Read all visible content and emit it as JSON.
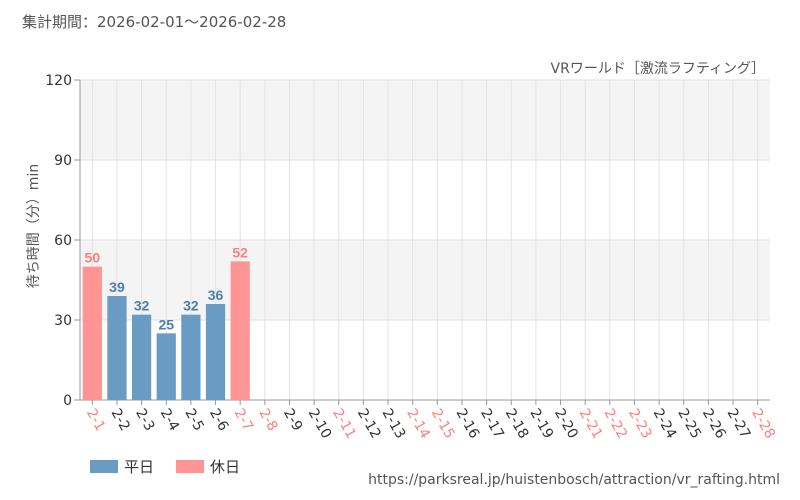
{
  "header": {
    "period": "集計期間：2026-02-01～2026-02-28"
  },
  "colors": {
    "weekday": "#6a9bc3",
    "holiday": "#ff9494",
    "weekday_label": "#4d7eaa",
    "holiday_label": "#ff7f7f",
    "grid_band": "#f4f4f4"
  },
  "chart_data": {
    "type": "bar",
    "title": "",
    "subtitle": "VRワールド［激流ラフティング］",
    "xlabel": "",
    "ylabel": "待ち時間（分）min",
    "ylim": [
      0,
      120
    ],
    "yticks": [
      "0",
      "30",
      "60",
      "90",
      "120"
    ],
    "grid": true,
    "legend_position": "bottom-left",
    "categories": [
      "2-1",
      "2-2",
      "2-3",
      "2-4",
      "2-5",
      "2-6",
      "2-7",
      "2-8",
      "2-9",
      "2-10",
      "2-11",
      "2-12",
      "2-13",
      "2-14",
      "2-15",
      "2-16",
      "2-17",
      "2-18",
      "2-19",
      "2-20",
      "2-21",
      "2-22",
      "2-23",
      "2-24",
      "2-25",
      "2-26",
      "2-27",
      "2-28"
    ],
    "values": [
      50,
      39,
      32,
      25,
      32,
      36,
      52,
      null,
      null,
      null,
      null,
      null,
      null,
      null,
      null,
      null,
      null,
      null,
      null,
      null,
      null,
      null,
      null,
      null,
      null,
      null,
      null,
      null
    ],
    "day_type": [
      "holiday",
      "weekday",
      "weekday",
      "weekday",
      "weekday",
      "weekday",
      "holiday",
      "holiday",
      "weekday",
      "weekday",
      "holiday",
      "weekday",
      "weekday",
      "holiday",
      "holiday",
      "weekday",
      "weekday",
      "weekday",
      "weekday",
      "weekday",
      "holiday",
      "holiday",
      "holiday",
      "weekday",
      "weekday",
      "weekday",
      "weekday",
      "holiday"
    ],
    "legend": [
      {
        "key": "weekday",
        "label": "平日"
      },
      {
        "key": "holiday",
        "label": "休日"
      }
    ]
  },
  "footer": {
    "source": "https://parksreal.jp/huistenbosch/attraction/vr_rafting.html"
  }
}
